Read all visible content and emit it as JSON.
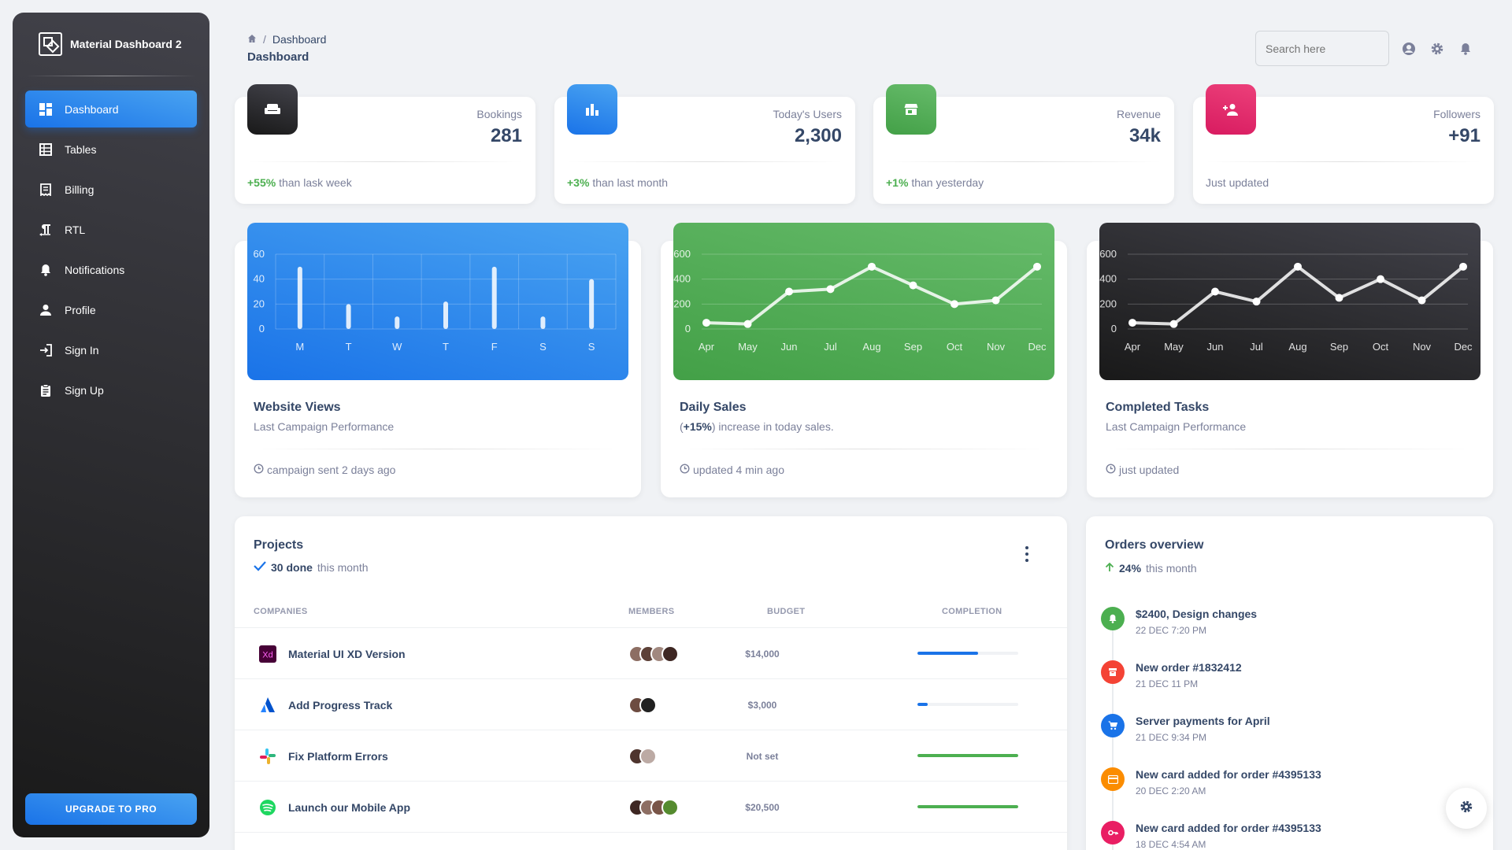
{
  "sidebar": {
    "brand": "Material Dashboard 2",
    "items": [
      {
        "label": "Dashboard",
        "icon": "dashboard-icon",
        "active": true
      },
      {
        "label": "Tables",
        "icon": "table-icon"
      },
      {
        "label": "Billing",
        "icon": "receipt-icon"
      },
      {
        "label": "RTL",
        "icon": "format-textdirection-icon"
      },
      {
        "label": "Notifications",
        "icon": "bell-icon"
      },
      {
        "label": "Profile",
        "icon": "person-icon"
      },
      {
        "label": "Sign In",
        "icon": "login-icon"
      },
      {
        "label": "Sign Up",
        "icon": "assignment-icon"
      }
    ],
    "upgrade_label": "Upgrade to pro"
  },
  "header": {
    "breadcrumb": "Dashboard",
    "title": "Dashboard",
    "search_placeholder": "Search here"
  },
  "stats": [
    {
      "label": "Bookings",
      "value": "281",
      "pct": "+55%",
      "foot": "than lask week",
      "icon": "weekend-icon",
      "color": "#1f1f23"
    },
    {
      "label": "Today's Users",
      "value": "2,300",
      "pct": "+3%",
      "foot": "than last month",
      "icon": "leaderboard-icon",
      "color": "#1a73e8"
    },
    {
      "label": "Revenue",
      "value": "34k",
      "pct": "+1%",
      "foot": "than yesterday",
      "icon": "store-icon",
      "color": "#43a047"
    },
    {
      "label": "Followers",
      "value": "+91",
      "pct": "",
      "foot": "Just updated",
      "icon": "person-add-icon",
      "color": "#e91e63"
    }
  ],
  "charts": [
    {
      "title": "Website Views",
      "subtitle": "Last Campaign Performance",
      "foot": "campaign sent 2 days ago"
    },
    {
      "title": "Daily Sales",
      "subtitle_bold": "+15%",
      "subtitle": ") increase in today sales.",
      "subtitle_pre": "(",
      "foot": "updated 4 min ago"
    },
    {
      "title": "Completed Tasks",
      "subtitle": "Last Campaign Performance",
      "foot": "just updated"
    }
  ],
  "chart_data": [
    {
      "type": "bar",
      "categories": [
        "M",
        "T",
        "W",
        "T",
        "F",
        "S",
        "S"
      ],
      "values": [
        50,
        20,
        10,
        22,
        50,
        10,
        40
      ],
      "ylim": [
        0,
        60
      ],
      "yticks": [
        0,
        20,
        40,
        60
      ],
      "grid": true
    },
    {
      "type": "line",
      "categories": [
        "Apr",
        "May",
        "Jun",
        "Jul",
        "Aug",
        "Sep",
        "Oct",
        "Nov",
        "Dec"
      ],
      "values": [
        50,
        40,
        300,
        320,
        500,
        350,
        200,
        230,
        500
      ],
      "ylim": [
        0,
        600
      ],
      "yticks": [
        0,
        200,
        400,
        600
      ],
      "grid": true
    },
    {
      "type": "line",
      "categories": [
        "Apr",
        "May",
        "Jun",
        "Jul",
        "Aug",
        "Sep",
        "Oct",
        "Nov",
        "Dec"
      ],
      "values": [
        50,
        40,
        300,
        220,
        500,
        250,
        400,
        230,
        500
      ],
      "ylim": [
        0,
        600
      ],
      "yticks": [
        0,
        200,
        400,
        600
      ],
      "grid": true
    }
  ],
  "projects": {
    "title": "Projects",
    "done_count": "30 done",
    "done_suffix": "this month",
    "columns": [
      "Companies",
      "Members",
      "Budget",
      "Completion"
    ],
    "rows": [
      {
        "name": "Material UI XD Version",
        "logo": "xd-logo-icon",
        "members": 4,
        "budget": "$14,000",
        "completion": 60,
        "bar": "#1a73e8"
      },
      {
        "name": "Add Progress Track",
        "logo": "atlassian-logo-icon",
        "members": 2,
        "budget": "$3,000",
        "completion": 10,
        "bar": "#1a73e8"
      },
      {
        "name": "Fix Platform Errors",
        "logo": "slack-logo-icon",
        "members": 2,
        "budget": "Not set",
        "completion": 100,
        "bar": "#4caf50"
      },
      {
        "name": "Launch our Mobile App",
        "logo": "spotify-logo-icon",
        "members": 4,
        "budget": "$20,500",
        "completion": 100,
        "bar": "#4caf50"
      }
    ]
  },
  "orders": {
    "title": "Orders overview",
    "pct": "24%",
    "suffix": "this month",
    "items": [
      {
        "name": "$2400, Design changes",
        "date": "22 DEC 7:20 PM",
        "color": "#4caf50",
        "icon": "bell-icon"
      },
      {
        "name": "New order #1832412",
        "date": "21 DEC 11 PM",
        "color": "#f44335",
        "icon": "inventory-icon"
      },
      {
        "name": "Server payments for April",
        "date": "21 DEC 9:34 PM",
        "color": "#1a73e8",
        "icon": "cart-icon"
      },
      {
        "name": "New card added for order #4395133",
        "date": "20 DEC 2:20 AM",
        "color": "#fb8c00",
        "icon": "credit-card-icon"
      },
      {
        "name": "New card added for order #4395133",
        "date": "18 DEC 4:54 AM",
        "color": "#e91e63",
        "icon": "key-icon"
      }
    ]
  }
}
